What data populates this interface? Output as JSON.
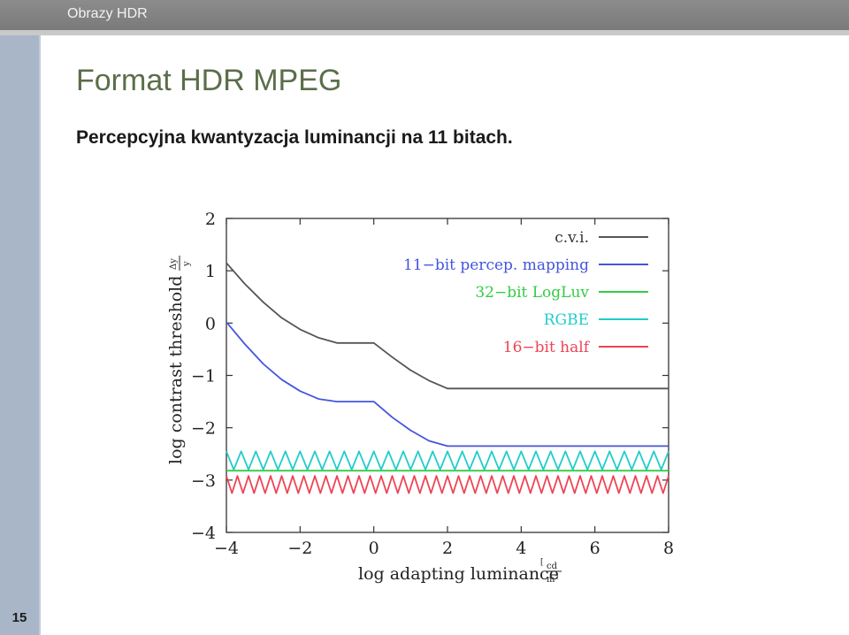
{
  "header": {
    "app_title": "Obrazy HDR"
  },
  "slide": {
    "title": "Format HDR MPEG",
    "subtitle": "Percepcyjna kwantyzacja luminancji na 11 bitach.",
    "number": "15"
  },
  "colors": {
    "topbar": "#7f7f7f",
    "sidebar": "#a8b6c8",
    "title": "#5b6e4a"
  },
  "chart_data": {
    "type": "line",
    "xlabel": "log adapting luminance",
    "xlabel_unit_num": "cd",
    "xlabel_unit_den": "m²",
    "ylabel": "log contrast threshold",
    "ylabel_fraction_num": "Δy",
    "ylabel_fraction_den": "y",
    "xlim": [
      -4,
      8
    ],
    "ylim": [
      -4,
      2
    ],
    "x_ticks": [
      "−4",
      "−2",
      "0",
      "2",
      "4",
      "6",
      "8"
    ],
    "y_ticks": [
      "2",
      "1",
      "0",
      "−1",
      "−2",
      "−3",
      "−4"
    ],
    "x_tick_values": [
      -4,
      -2,
      0,
      2,
      4,
      6,
      8
    ],
    "y_tick_values": [
      2,
      1,
      0,
      -1,
      -2,
      -3,
      -4
    ],
    "legend_position": "top-right",
    "series": [
      {
        "name": "c.v.i.",
        "color": "#555555",
        "style": "line",
        "points": [
          [
            -4,
            1.15
          ],
          [
            -3.5,
            0.75
          ],
          [
            -3,
            0.4
          ],
          [
            -2.5,
            0.1
          ],
          [
            -2,
            -0.12
          ],
          [
            -1.5,
            -0.28
          ],
          [
            -1,
            -0.38
          ],
          [
            -0.5,
            -0.38
          ],
          [
            0,
            -0.38
          ],
          [
            0.5,
            -0.65
          ],
          [
            1,
            -0.9
          ],
          [
            1.5,
            -1.1
          ],
          [
            2,
            -1.25
          ],
          [
            3,
            -1.25
          ],
          [
            4,
            -1.25
          ],
          [
            5,
            -1.25
          ],
          [
            6,
            -1.25
          ],
          [
            7,
            -1.25
          ],
          [
            8,
            -1.25
          ]
        ]
      },
      {
        "name": "11−bit percep. mapping",
        "color": "#4455dd",
        "style": "line",
        "points": [
          [
            -4,
            0.02
          ],
          [
            -3.5,
            -0.4
          ],
          [
            -3,
            -0.78
          ],
          [
            -2.5,
            -1.08
          ],
          [
            -2,
            -1.3
          ],
          [
            -1.5,
            -1.45
          ],
          [
            -1,
            -1.5
          ],
          [
            -0.5,
            -1.5
          ],
          [
            0,
            -1.5
          ],
          [
            0.5,
            -1.8
          ],
          [
            1,
            -2.05
          ],
          [
            1.5,
            -2.25
          ],
          [
            2,
            -2.35
          ],
          [
            3,
            -2.35
          ],
          [
            4,
            -2.35
          ],
          [
            5,
            -2.35
          ],
          [
            6,
            -2.35
          ],
          [
            7,
            -2.35
          ],
          [
            8,
            -2.35
          ]
        ]
      },
      {
        "name": "32−bit LogLuv",
        "color": "#33cc44",
        "style": "line",
        "points": [
          [
            -4,
            -2.82
          ],
          [
            8,
            -2.82
          ]
        ]
      },
      {
        "name": "RGBE",
        "color": "#22cccc",
        "style": "sawtooth",
        "low": -2.8,
        "high": -2.45,
        "periods": 30
      },
      {
        "name": "16−bit half",
        "color": "#ee4455",
        "style": "sawtooth",
        "low": -3.25,
        "high": -2.92,
        "periods": 40
      }
    ]
  }
}
